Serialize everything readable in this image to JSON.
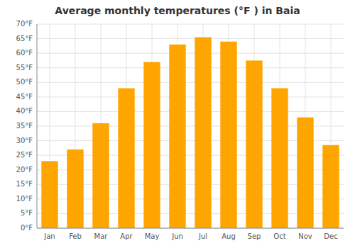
{
  "chart_data": {
    "type": "bar",
    "title": "Average monthly temperatures (°F ) in Baia",
    "categories": [
      "Jan",
      "Feb",
      "Mar",
      "Apr",
      "May",
      "Jun",
      "Jul",
      "Aug",
      "Sep",
      "Oct",
      "Nov",
      "Dec"
    ],
    "values": [
      23,
      27,
      36,
      48,
      57,
      63,
      65.5,
      64,
      57.5,
      48,
      38,
      28.5
    ],
    "color": "#FFA500",
    "ylim": [
      0,
      70
    ],
    "yticks": [
      {
        "value": 0,
        "label": "0°F"
      },
      {
        "value": 5,
        "label": "5°F"
      },
      {
        "value": 10,
        "label": "10°F"
      },
      {
        "value": 15,
        "label": "15°F"
      },
      {
        "value": 20,
        "label": "20°F"
      },
      {
        "value": 25,
        "label": "25°F"
      },
      {
        "value": 30,
        "label": "30°F"
      },
      {
        "value": 35,
        "label": "35°F"
      },
      {
        "value": 40,
        "label": "40°F"
      },
      {
        "value": 45,
        "label": "45°F"
      },
      {
        "value": 50,
        "label": "50°F"
      },
      {
        "value": 55,
        "label": "55°F"
      },
      {
        "value": 60,
        "label": "60°F"
      },
      {
        "value": 65,
        "label": "65°F"
      },
      {
        "value": 70,
        "label": "70°F"
      }
    ],
    "grid": true
  }
}
